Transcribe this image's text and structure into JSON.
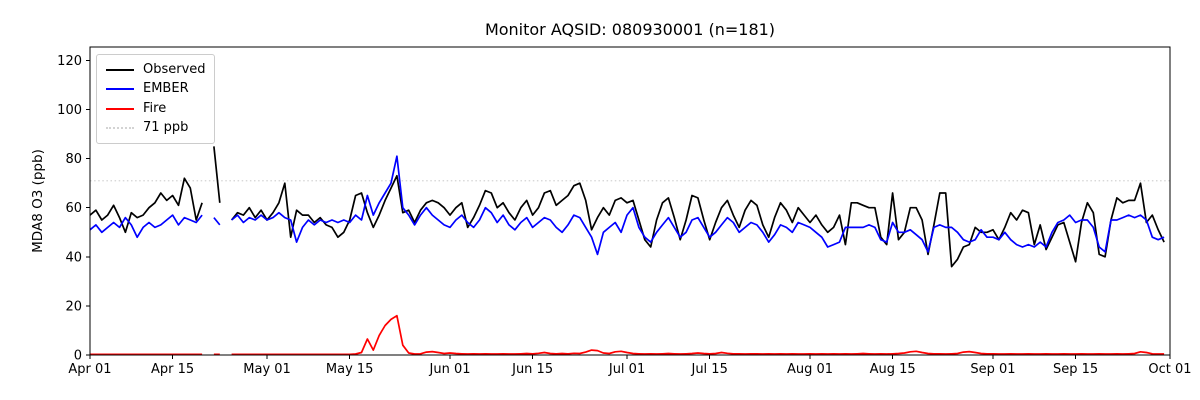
{
  "chart_data": {
    "type": "line",
    "title": "Monitor AQSID: 080930001 (n=181)",
    "ylabel": "MDA8 O3 (ppb)",
    "xlabel": "",
    "ylim": [
      0,
      125.5
    ],
    "yticks": [
      0,
      20,
      40,
      60,
      80,
      100,
      120
    ],
    "x_total_days": 183,
    "grid": false,
    "legend_position": "upper-left",
    "xticks": [
      {
        "day": 0,
        "label": "Apr 01"
      },
      {
        "day": 14,
        "label": "Apr 15"
      },
      {
        "day": 30,
        "label": "May 01"
      },
      {
        "day": 44,
        "label": "May 15"
      },
      {
        "day": 61,
        "label": "Jun 01"
      },
      {
        "day": 75,
        "label": "Jun 15"
      },
      {
        "day": 91,
        "label": "Jul 01"
      },
      {
        "day": 105,
        "label": "Jul 15"
      },
      {
        "day": 122,
        "label": "Aug 01"
      },
      {
        "day": 136,
        "label": "Aug 15"
      },
      {
        "day": 153,
        "label": "Sep 01"
      },
      {
        "day": 167,
        "label": "Sep 15"
      },
      {
        "day": 183,
        "label": "Oct 01"
      }
    ],
    "threshold": {
      "label": "71 ppb",
      "value": 71,
      "color": "#d3d3d3",
      "style": "dotted"
    },
    "series": [
      {
        "name": "Observed",
        "color": "#000000",
        "values": [
          57,
          59,
          55,
          57,
          61,
          56,
          50,
          58,
          56,
          57,
          60,
          62,
          66,
          63,
          65,
          61,
          72,
          68,
          55,
          62,
          null,
          85,
          62,
          null,
          55,
          58,
          57,
          60,
          56,
          59,
          55,
          58,
          62,
          70,
          48,
          59,
          57,
          57,
          54,
          56,
          53,
          52,
          48,
          50,
          55,
          65,
          66,
          58,
          52,
          57,
          63,
          68,
          73,
          58,
          59,
          54,
          59,
          62,
          63,
          62,
          60,
          57,
          60,
          62,
          52,
          56,
          61,
          67,
          66,
          60,
          62,
          58,
          55,
          60,
          63,
          57,
          60,
          66,
          67,
          61,
          63,
          65,
          69,
          70,
          63,
          51,
          56,
          60,
          57,
          63,
          64,
          62,
          63,
          55,
          47,
          44,
          55,
          62,
          64,
          56,
          47,
          55,
          65,
          64,
          55,
          47,
          54,
          60,
          63,
          57,
          52,
          59,
          63,
          61,
          53,
          48,
          56,
          62,
          59,
          54,
          60,
          57,
          54,
          57,
          53,
          50,
          52,
          57,
          45,
          62,
          62,
          61,
          60,
          60,
          48,
          45,
          66,
          47,
          50,
          60,
          60,
          55,
          41,
          53,
          66,
          66,
          36,
          39,
          44,
          45,
          52,
          50,
          50,
          51,
          47,
          52,
          58,
          55,
          59,
          58,
          45,
          53,
          43,
          48,
          53,
          54,
          46,
          38,
          54,
          62,
          58,
          41,
          40,
          55,
          64,
          62,
          63,
          63,
          70,
          54,
          57,
          51,
          46
        ]
      },
      {
        "name": "EMBER",
        "color": "#0000ff",
        "values": [
          51,
          53,
          50,
          52,
          54,
          52,
          56,
          53,
          48,
          52,
          54,
          52,
          53,
          55,
          57,
          53,
          56,
          55,
          54,
          57,
          null,
          56,
          53,
          null,
          55,
          57,
          54,
          56,
          55,
          57,
          55,
          56,
          58,
          56,
          55,
          46,
          52,
          55,
          53,
          55,
          54,
          55,
          54,
          55,
          54,
          57,
          55,
          65,
          57,
          62,
          66,
          70,
          81,
          60,
          57,
          53,
          57,
          60,
          57,
          55,
          53,
          52,
          55,
          57,
          54,
          52,
          55,
          60,
          58,
          54,
          57,
          53,
          51,
          54,
          56,
          52,
          54,
          56,
          55,
          52,
          50,
          53,
          57,
          56,
          52,
          48,
          41,
          50,
          52,
          54,
          50,
          57,
          60,
          52,
          48,
          46,
          50,
          53,
          56,
          52,
          48,
          50,
          55,
          56,
          52,
          48,
          50,
          53,
          56,
          54,
          50,
          52,
          54,
          53,
          50,
          46,
          49,
          53,
          52,
          50,
          54,
          53,
          52,
          50,
          48,
          44,
          45,
          46,
          52,
          52,
          52,
          52,
          53,
          52,
          47,
          46,
          54,
          50,
          50,
          51,
          49,
          47,
          42,
          52,
          53,
          52,
          52,
          50,
          47,
          46,
          47,
          51,
          48,
          48,
          47,
          50,
          47,
          45,
          44,
          45,
          44,
          46,
          44,
          50,
          54,
          55,
          57,
          54,
          55,
          55,
          52,
          44,
          42,
          55,
          55,
          56,
          57,
          56,
          57,
          55,
          48,
          47,
          48
        ]
      },
      {
        "name": "Fire",
        "color": "#ff0000",
        "values": [
          0.3,
          0.3,
          0.3,
          0.3,
          0.3,
          0.3,
          0.3,
          0.3,
          0.3,
          0.3,
          0.3,
          0.3,
          0.3,
          0.3,
          0.3,
          0.3,
          0.3,
          0.3,
          0.3,
          0.3,
          null,
          0.3,
          0.3,
          null,
          0.3,
          0.3,
          0.3,
          0.3,
          0.3,
          0.3,
          0.3,
          0.3,
          0.3,
          0.3,
          0.3,
          0.3,
          0.3,
          0.3,
          0.3,
          0.3,
          0.3,
          0.3,
          0.3,
          0.3,
          0.3,
          0.4,
          1,
          6.5,
          2,
          8,
          12,
          14.5,
          16,
          4,
          0.8,
          0.4,
          0.5,
          1.2,
          1.4,
          1,
          0.6,
          0.8,
          0.6,
          0.5,
          0.4,
          0.5,
          0.4,
          0.5,
          0.4,
          0.4,
          0.5,
          0.4,
          0.4,
          0.5,
          0.6,
          0.5,
          0.7,
          1,
          0.6,
          0.5,
          0.6,
          0.5,
          0.7,
          0.6,
          1.2,
          2,
          1.8,
          0.8,
          0.6,
          1.3,
          1.5,
          1,
          0.6,
          0.5,
          0.4,
          0.5,
          0.4,
          0.5,
          0.6,
          0.5,
          0.4,
          0.5,
          0.6,
          0.8,
          0.6,
          0.5,
          0.6,
          1,
          0.7,
          0.5,
          0.5,
          0.4,
          0.5,
          0.5,
          0.4,
          0.5,
          0.4,
          0.5,
          0.4,
          0.5,
          0.4,
          0.4,
          0.5,
          0.4,
          0.5,
          0.4,
          0.5,
          0.4,
          0.5,
          0.4,
          0.5,
          0.6,
          0.5,
          0.4,
          0.5,
          0.4,
          0.5,
          0.6,
          0.8,
          1.3,
          1.5,
          1,
          0.6,
          0.5,
          0.5,
          0.4,
          0.5,
          0.6,
          1.2,
          1.4,
          1,
          0.6,
          0.5,
          0.5,
          0.4,
          0.4,
          0.5,
          0.4,
          0.4,
          0.5,
          0.4,
          0.4,
          0.5,
          0.4,
          0.4,
          0.5,
          0.4,
          0.4,
          0.5,
          0.4,
          0.4,
          0.5,
          0.4,
          0.4,
          0.5,
          0.4,
          0.5,
          0.6,
          1.3,
          1,
          0.5,
          0.4,
          0.4
        ]
      }
    ]
  }
}
